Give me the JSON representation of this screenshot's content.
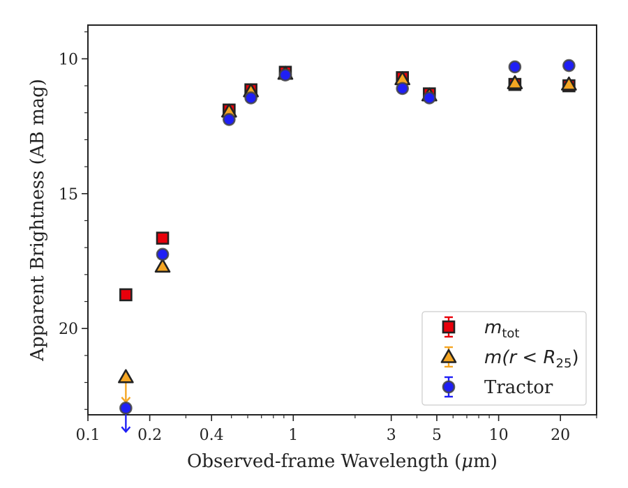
{
  "chart_data": {
    "type": "scatter",
    "xlabel_prefix": "Observed-frame Wavelength (",
    "xlabel_unit": "μ",
    "xlabel_suffix": "m)",
    "ylabel": "Apparent Brightness (AB mag)",
    "xscale": "log",
    "xlim": [
      0.1,
      30
    ],
    "ylim": [
      23.2,
      8.75
    ],
    "y_inverted": true,
    "x_ticks": [
      0.1,
      0.2,
      0.4,
      1,
      3,
      5,
      10,
      20
    ],
    "x_tick_labels": [
      "0.1",
      "0.2",
      "0.4",
      "1",
      "3",
      "5",
      "10",
      "20"
    ],
    "y_ticks": [
      10,
      15,
      20
    ],
    "y_tick_labels": [
      "10",
      "15",
      "20"
    ],
    "grid": false,
    "legend_position": "bottom-right",
    "series": [
      {
        "name": "m_tot",
        "legend_main": "m",
        "legend_sub": "tot",
        "marker": "square",
        "color": "#e8000b",
        "x": [
          0.153,
          0.231,
          0.487,
          0.622,
          0.915,
          3.4,
          4.6,
          12.0,
          22.0
        ],
        "y": [
          18.75,
          16.65,
          11.9,
          11.15,
          10.5,
          10.7,
          11.3,
          10.95,
          11.0
        ]
      },
      {
        "name": "m(r<R25)",
        "legend_main": "m(r < R",
        "legend_sub": "25",
        "legend_tail": ")",
        "marker": "triangle",
        "color": "#f5a623",
        "x": [
          0.153,
          0.231,
          0.487,
          0.622,
          0.915,
          3.4,
          4.6,
          12.0,
          22.0
        ],
        "y": [
          21.8,
          17.7,
          11.95,
          11.2,
          10.55,
          10.75,
          11.35,
          10.9,
          10.95
        ],
        "upper_limit_index": 0
      },
      {
        "name": "Tractor",
        "legend_main": "Tractor",
        "marker": "circle",
        "color": "#1f1ff5",
        "x": [
          0.153,
          0.231,
          0.487,
          0.622,
          0.915,
          3.4,
          4.6,
          12.0,
          22.0
        ],
        "y": [
          22.95,
          17.25,
          12.25,
          11.45,
          10.6,
          11.1,
          11.45,
          10.3,
          10.25
        ],
        "upper_limit_index": 0
      }
    ]
  }
}
